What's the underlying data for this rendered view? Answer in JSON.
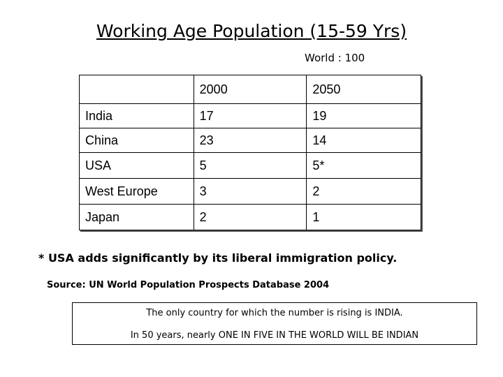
{
  "title": "Working Age Population (15-59 Yrs)",
  "unit_note": "World : 100",
  "table": {
    "headers": [
      "",
      "2000",
      "2050"
    ],
    "rows": [
      [
        "India",
        "17",
        "19"
      ],
      [
        "China",
        "23",
        "14"
      ],
      [
        "USA",
        "5",
        "5*"
      ],
      [
        "West Europe",
        "3",
        "2"
      ],
      [
        "Japan",
        "2",
        "1"
      ]
    ]
  },
  "footnote": "* USA adds significantly by its liberal immigration policy.",
  "source": "Source: UN World Population Prospects Database 2004",
  "conclusion": {
    "line1": "The only country for which the number is rising is INDIA.",
    "line2": "In 50 years, nearly ONE IN FIVE IN THE WORLD WILL BE INDIAN"
  }
}
